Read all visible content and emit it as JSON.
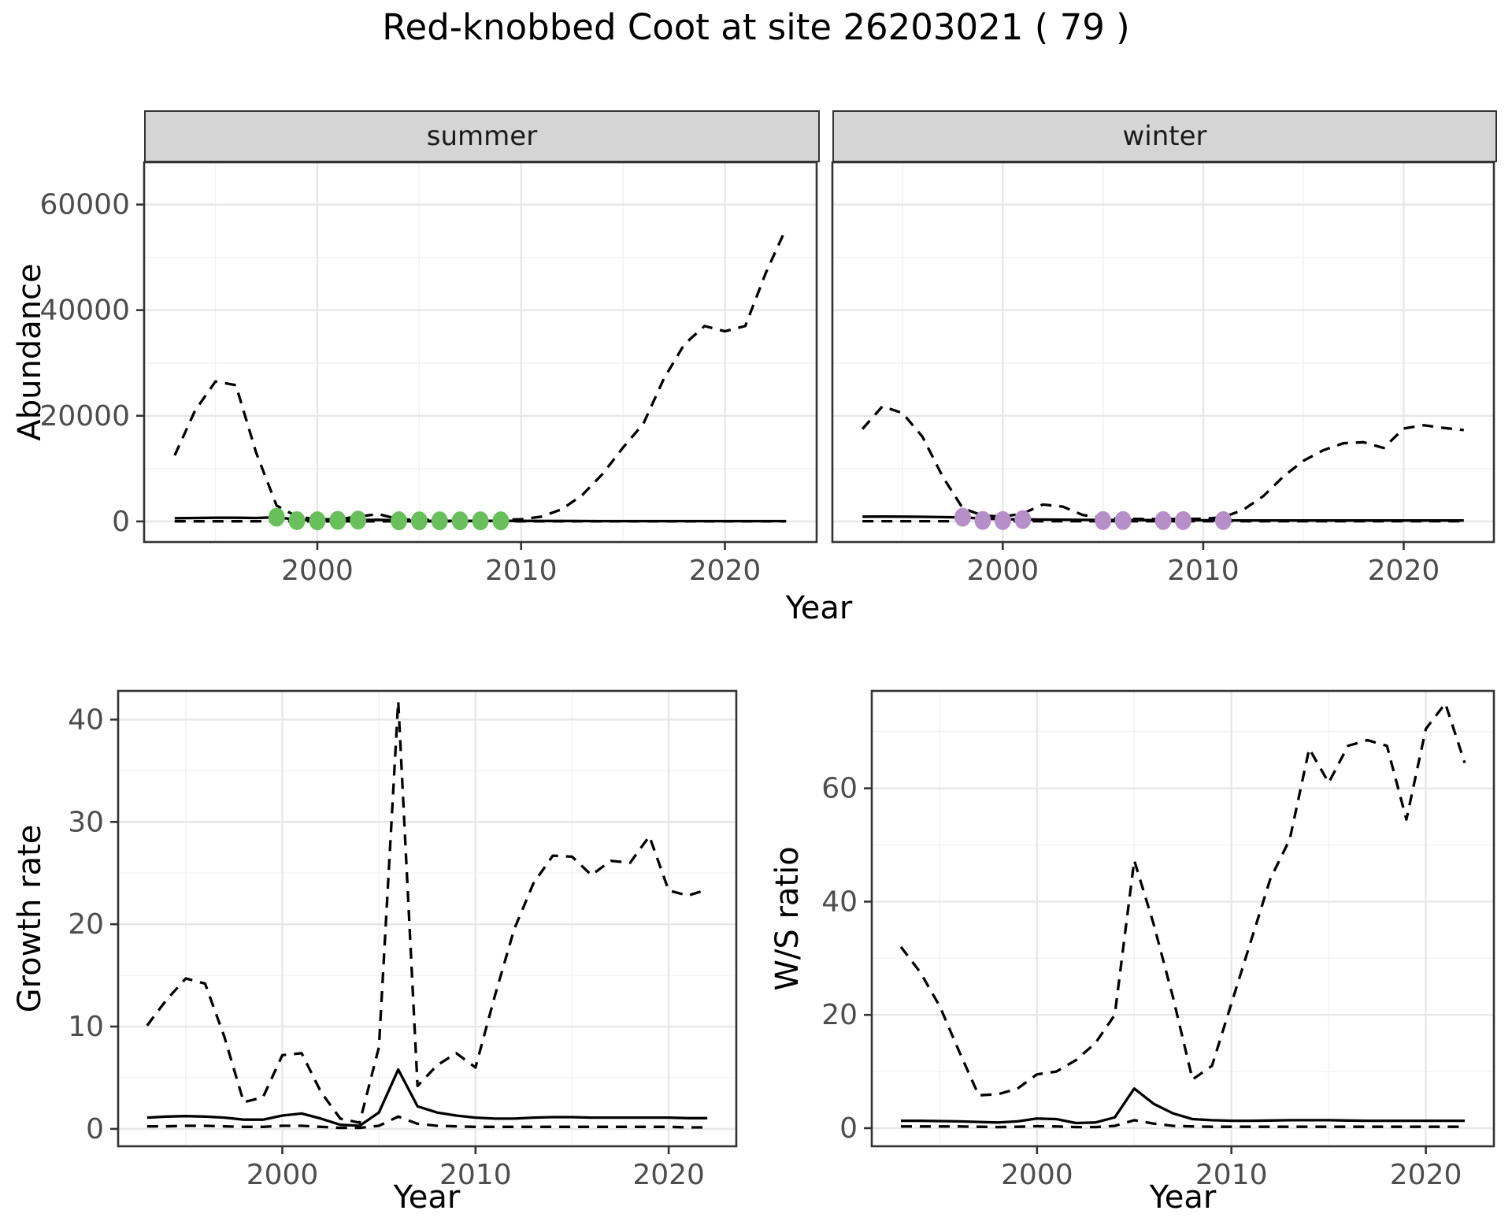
{
  "title": "Red-knobbed Coot at site 26203021 ( 79 )",
  "facets": {
    "summer": "summer",
    "winter": "winter"
  },
  "axes": {
    "abundance": "Abundance",
    "year_top": "Year",
    "growth": "Growth rate",
    "ws": "W/S ratio",
    "year_bottom_left": "Year",
    "year_bottom_right": "Year"
  },
  "style": {
    "line_color": "#000000",
    "summer_point_color": "#69bf5c",
    "winter_point_color": "#b78fc8",
    "strip_bg": "#d5d5d5",
    "panel_border": "#333333",
    "grid_major": "#e7e7e7",
    "grid_minor": "#f2f2f2",
    "tick_text": "#4d4d4d"
  },
  "chart_data": [
    {
      "id": "summer-abundance",
      "type": "line",
      "facet": "summer",
      "ylabel": "Abundance",
      "xlabel": "Year",
      "x": [
        1993,
        1994,
        1995,
        1996,
        1997,
        1998,
        1999,
        2000,
        2001,
        2002,
        2003,
        2004,
        2005,
        2006,
        2007,
        2008,
        2009,
        2010,
        2011,
        2012,
        2013,
        2014,
        2015,
        2016,
        2017,
        2018,
        2019,
        2020,
        2021,
        2022,
        2023
      ],
      "series": [
        {
          "name": "upper_ci",
          "style": "dashed",
          "values": [
            12500,
            21000,
            26500,
            25800,
            13000,
            3000,
            900,
            400,
            400,
            900,
            1400,
            400,
            300,
            300,
            300,
            300,
            300,
            400,
            900,
            2300,
            5000,
            9000,
            14000,
            18500,
            27000,
            33500,
            37000,
            36000,
            37000,
            47000,
            55500
          ]
        },
        {
          "name": "median",
          "style": "solid",
          "values": [
            600,
            650,
            700,
            700,
            650,
            800,
            300,
            200,
            200,
            250,
            300,
            150,
            120,
            110,
            100,
            100,
            100,
            100,
            90,
            80,
            70,
            60,
            60,
            60,
            60,
            60,
            60,
            60,
            60,
            60,
            60
          ]
        },
        {
          "name": "lower_ci",
          "style": "dashed",
          "values": [
            30,
            30,
            30,
            30,
            30,
            30,
            30,
            30,
            30,
            30,
            30,
            30,
            30,
            30,
            30,
            30,
            30,
            30,
            30,
            30,
            30,
            30,
            30,
            30,
            30,
            30,
            30,
            30,
            30,
            30,
            30
          ]
        }
      ],
      "points": {
        "color": "#69bf5c",
        "data": [
          [
            1998,
            800
          ],
          [
            1999,
            150
          ],
          [
            2000,
            120
          ],
          [
            2001,
            200
          ],
          [
            2002,
            250
          ],
          [
            2004,
            120
          ],
          [
            2005,
            110
          ],
          [
            2006,
            110
          ],
          [
            2007,
            110
          ],
          [
            2008,
            110
          ],
          [
            2009,
            110
          ]
        ]
      },
      "xlim": [
        1991.5,
        2024.5
      ],
      "ylim": [
        -3900,
        68000
      ],
      "xticks": {
        "major": [
          2000,
          2010,
          2020
        ],
        "labels": [
          "2000",
          "2010",
          "2020"
        ],
        "minor": [
          1995,
          2005,
          2015
        ]
      },
      "yticks": {
        "major": [
          0,
          20000,
          40000,
          60000
        ],
        "labels": [
          "0",
          "20000",
          "40000",
          "60000"
        ],
        "minor": [
          10000,
          30000,
          50000
        ]
      }
    },
    {
      "id": "winter-abundance",
      "type": "line",
      "facet": "winter",
      "ylabel": "Abundance",
      "xlabel": "Year",
      "x": [
        1993,
        1994,
        1995,
        1996,
        1997,
        1998,
        1999,
        2000,
        2001,
        2002,
        2003,
        2004,
        2005,
        2006,
        2007,
        2008,
        2009,
        2010,
        2011,
        2012,
        2013,
        2014,
        2015,
        2016,
        2017,
        2018,
        2019,
        2020,
        2021,
        2022,
        2023
      ],
      "series": [
        {
          "name": "upper_ci",
          "style": "dashed",
          "values": [
            17500,
            21800,
            20500,
            16000,
            8500,
            2500,
            1100,
            900,
            1500,
            3200,
            2800,
            1200,
            700,
            500,
            450,
            450,
            450,
            500,
            800,
            2200,
            4800,
            8500,
            11500,
            13500,
            14800,
            15000,
            13900,
            17600,
            18200,
            17700,
            17300
          ]
        },
        {
          "name": "median",
          "style": "solid",
          "values": [
            900,
            920,
            900,
            870,
            820,
            750,
            550,
            420,
            380,
            350,
            320,
            290,
            270,
            250,
            240,
            230,
            220,
            210,
            200,
            190,
            185,
            180,
            175,
            170,
            170,
            170,
            170,
            170,
            170,
            170,
            170
          ]
        },
        {
          "name": "lower_ci",
          "style": "dashed",
          "values": [
            40,
            40,
            40,
            40,
            40,
            40,
            40,
            40,
            40,
            40,
            40,
            40,
            40,
            40,
            40,
            40,
            40,
            40,
            40,
            40,
            40,
            40,
            40,
            40,
            40,
            40,
            40,
            40,
            40,
            40,
            40
          ]
        }
      ],
      "points": {
        "color": "#b78fc8",
        "data": [
          [
            1998,
            800
          ],
          [
            1999,
            180
          ],
          [
            2000,
            160
          ],
          [
            2001,
            350
          ],
          [
            2005,
            160
          ],
          [
            2006,
            160
          ],
          [
            2008,
            160
          ],
          [
            2009,
            160
          ],
          [
            2011,
            160
          ]
        ]
      },
      "xlim": [
        1991.5,
        2024.5
      ],
      "ylim": [
        -3900,
        68000
      ],
      "xticks": {
        "major": [
          2000,
          2010,
          2020
        ],
        "labels": [
          "2000",
          "2010",
          "2020"
        ],
        "minor": [
          1995,
          2005,
          2015
        ]
      },
      "yticks": {
        "major": [
          0,
          20000,
          40000,
          60000
        ],
        "labels": [
          "0",
          "20000",
          "40000",
          "60000"
        ],
        "minor": [
          10000,
          30000,
          50000
        ]
      }
    },
    {
      "id": "growth-rate",
      "type": "line",
      "ylabel": "Growth rate",
      "xlabel": "Year",
      "x": [
        1993,
        1994,
        1995,
        1996,
        1997,
        1998,
        1999,
        2000,
        2001,
        2002,
        2003,
        2004,
        2005,
        2006,
        2007,
        2008,
        2009,
        2010,
        2011,
        2012,
        2013,
        2014,
        2015,
        2016,
        2017,
        2018,
        2019,
        2020,
        2021,
        2022
      ],
      "series": [
        {
          "name": "upper_ci",
          "style": "dashed",
          "values": [
            10.1,
            12.6,
            14.7,
            14.2,
            9.0,
            2.6,
            3.1,
            7.2,
            7.4,
            3.6,
            1.0,
            0.6,
            8.0,
            41.8,
            4.2,
            6.2,
            7.4,
            6.0,
            13.0,
            19.5,
            24.0,
            26.7,
            26.6,
            24.8,
            26.2,
            26.0,
            28.6,
            23.3,
            22.8,
            23.4
          ]
        },
        {
          "name": "median",
          "style": "solid",
          "values": [
            1.1,
            1.2,
            1.25,
            1.2,
            1.1,
            0.9,
            0.9,
            1.3,
            1.5,
            1.0,
            0.4,
            0.3,
            1.6,
            5.8,
            2.2,
            1.6,
            1.3,
            1.1,
            1.0,
            1.0,
            1.1,
            1.15,
            1.15,
            1.1,
            1.1,
            1.1,
            1.1,
            1.1,
            1.05,
            1.05
          ]
        },
        {
          "name": "lower_ci",
          "style": "dashed",
          "values": [
            0.25,
            0.25,
            0.3,
            0.3,
            0.25,
            0.2,
            0.2,
            0.3,
            0.3,
            0.2,
            0.1,
            0.1,
            0.3,
            1.2,
            0.5,
            0.3,
            0.25,
            0.2,
            0.2,
            0.2,
            0.2,
            0.2,
            0.2,
            0.2,
            0.2,
            0.2,
            0.2,
            0.2,
            0.15,
            0.15
          ]
        }
      ],
      "points": null,
      "xlim": [
        1991.5,
        2023.5
      ],
      "ylim": [
        -1.7,
        42.8
      ],
      "xticks": {
        "major": [
          2000,
          2010,
          2020
        ],
        "labels": [
          "2000",
          "2010",
          "2020"
        ],
        "minor": [
          1995,
          2005,
          2015
        ]
      },
      "yticks": {
        "major": [
          0,
          10,
          20,
          30,
          40
        ],
        "labels": [
          "0",
          "10",
          "20",
          "30",
          "40"
        ],
        "minor": [
          5,
          15,
          25,
          35
        ]
      }
    },
    {
      "id": "ws-ratio",
      "type": "line",
      "ylabel": "W/S ratio",
      "xlabel": "Year",
      "x": [
        1993,
        1994,
        1995,
        1996,
        1997,
        1998,
        1999,
        2000,
        2001,
        2002,
        2003,
        2004,
        2005,
        2006,
        2007,
        2008,
        2009,
        2010,
        2011,
        2012,
        2013,
        2014,
        2015,
        2016,
        2017,
        2018,
        2019,
        2020,
        2021,
        2022
      ],
      "series": [
        {
          "name": "upper_ci",
          "style": "dashed",
          "values": [
            32.0,
            27.5,
            21.5,
            13.5,
            5.8,
            6.0,
            7.0,
            9.5,
            10.0,
            12.0,
            15.0,
            20.0,
            47.3,
            36.0,
            23.0,
            8.6,
            11.0,
            22.0,
            33.0,
            44.0,
            51.0,
            67.0,
            61.0,
            67.5,
            68.5,
            67.5,
            54.5,
            70.5,
            75.0,
            64.5
          ]
        },
        {
          "name": "median",
          "style": "solid",
          "values": [
            1.3,
            1.3,
            1.25,
            1.2,
            1.1,
            1.0,
            1.2,
            1.7,
            1.6,
            0.9,
            1.0,
            1.9,
            7.0,
            4.3,
            2.6,
            1.6,
            1.4,
            1.3,
            1.3,
            1.35,
            1.4,
            1.4,
            1.4,
            1.35,
            1.3,
            1.3,
            1.3,
            1.3,
            1.3,
            1.3
          ]
        },
        {
          "name": "lower_ci",
          "style": "dashed",
          "values": [
            0.3,
            0.3,
            0.3,
            0.3,
            0.25,
            0.2,
            0.25,
            0.35,
            0.3,
            0.2,
            0.2,
            0.4,
            1.4,
            0.8,
            0.4,
            0.3,
            0.25,
            0.25,
            0.25,
            0.25,
            0.25,
            0.25,
            0.25,
            0.25,
            0.25,
            0.25,
            0.25,
            0.25,
            0.25,
            0.25
          ]
        }
      ],
      "points": null,
      "xlim": [
        1991.5,
        2023.5
      ],
      "ylim": [
        -3.2,
        77.2
      ],
      "xticks": {
        "major": [
          2000,
          2010,
          2020
        ],
        "labels": [
          "2000",
          "2010",
          "2020"
        ],
        "minor": [
          1995,
          2005,
          2015
        ]
      },
      "yticks": {
        "major": [
          0,
          20,
          40,
          60
        ],
        "labels": [
          "0",
          "20",
          "40",
          "60"
        ],
        "minor": [
          10,
          30,
          50,
          70
        ]
      }
    }
  ]
}
